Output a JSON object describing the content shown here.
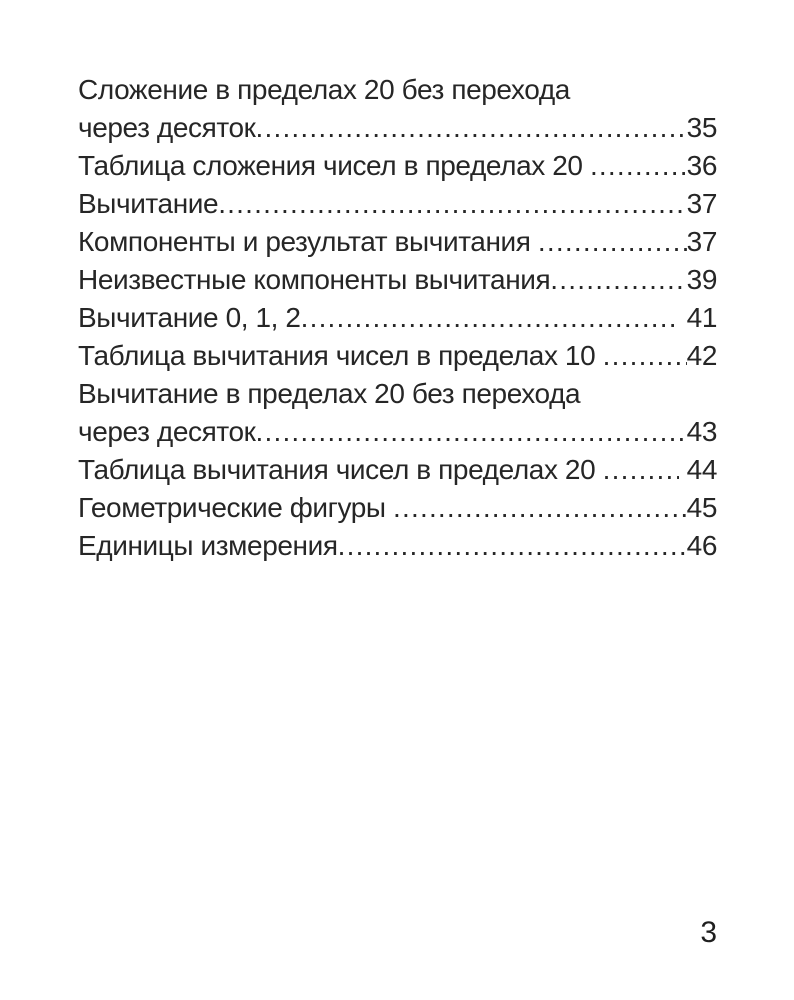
{
  "page": {
    "background": "#ffffff",
    "text_color": "#262626",
    "folio": "3"
  },
  "toc": {
    "entries": [
      {
        "lines": [
          "Сложение в пределах 20 без перехода",
          "через десяток"
        ],
        "page": "35"
      },
      {
        "lines": [
          "Таблица сложения чисел в пределах 20 "
        ],
        "page": "36"
      },
      {
        "lines": [
          "Вычитание"
        ],
        "page": "37"
      },
      {
        "lines": [
          "Компоненты и результат вычитания "
        ],
        "page": "37"
      },
      {
        "lines": [
          "Неизвестные компоненты вычитания"
        ],
        "page": "39"
      },
      {
        "lines": [
          "Вычитание 0, 1, 2"
        ],
        "page": " 41"
      },
      {
        "lines": [
          "Таблица вычитания чисел в пределах 10 "
        ],
        "page": "42"
      },
      {
        "lines": [
          "Вычитание в пределах 20 без перехода",
          "через десяток"
        ],
        "page": "43"
      },
      {
        "lines": [
          "Таблица вычитания чисел в пределах 20 "
        ],
        "page": " 44"
      },
      {
        "lines": [
          "Геометрические фигуры "
        ],
        "page": "45"
      },
      {
        "lines": [
          "Единицы измерения"
        ],
        "page": "46"
      }
    ]
  }
}
